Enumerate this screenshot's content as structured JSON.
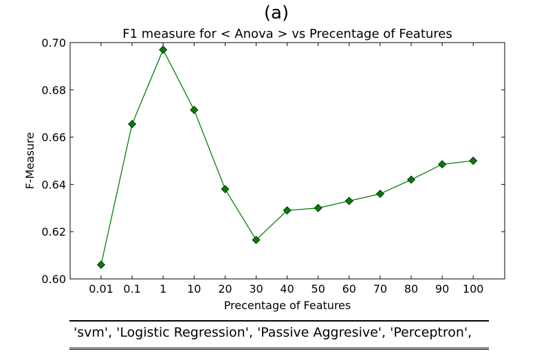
{
  "panel_label": "(a)",
  "caption": "'svm', 'Logistic Regression', 'Passive Aggresive', 'Perceptron',",
  "chart_data": {
    "type": "line",
    "title": "F1 measure for < Anova > vs Precentage of Features",
    "xlabel": "Precentage of Features",
    "ylabel": "F-Measure",
    "categories": [
      "0.01",
      "0.1",
      "1",
      "10",
      "20",
      "30",
      "40",
      "50",
      "60",
      "70",
      "80",
      "90",
      "100"
    ],
    "series": [
      {
        "values": [
          0.606,
          0.6655,
          0.697,
          0.6715,
          0.638,
          0.6165,
          0.629,
          0.63,
          0.633,
          0.636,
          0.642,
          0.6485,
          0.65
        ]
      }
    ],
    "ylim": [
      0.6,
      0.7
    ],
    "yticks": [
      "0.60",
      "0.62",
      "0.64",
      "0.66",
      "0.68",
      "0.70"
    ],
    "grid": false,
    "line_color": "#008000",
    "marker": "diamond"
  }
}
